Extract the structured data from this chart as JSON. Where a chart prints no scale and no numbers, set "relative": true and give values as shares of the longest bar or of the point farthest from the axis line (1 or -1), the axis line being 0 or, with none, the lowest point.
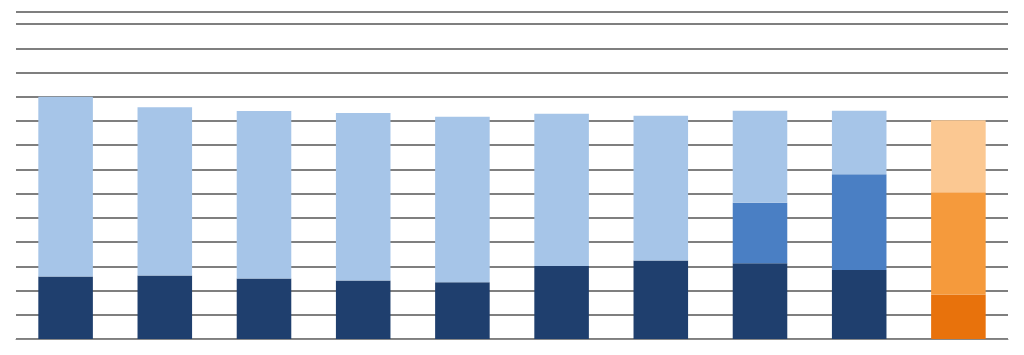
{
  "chart_data": {
    "type": "bar",
    "stacked": true,
    "relative": true,
    "grid": true,
    "categories": [
      null,
      null,
      null,
      null,
      null,
      null,
      null,
      null,
      null,
      null
    ],
    "series": [
      {
        "colors": [
          "#1f3f6e",
          "#1f3f6e",
          "#1f3f6e",
          "#1f3f6e",
          "#1f3f6e",
          "#1f3f6e",
          "#1f3f6e",
          "#1f3f6e",
          "#1f3f6e",
          "#e8720c"
        ],
        "values": [
          0.258,
          0.262,
          0.25,
          0.242,
          0.234,
          0.301,
          0.324,
          0.313,
          0.285,
          0.184
        ]
      },
      {
        "colors": [
          "#4a7fc4",
          "#4a7fc4",
          "#4a7fc4",
          "#4a7fc4",
          "#4a7fc4",
          "#4a7fc4",
          "#4a7fc4",
          "#4a7fc4",
          "#4a7fc4",
          "#f59a3c"
        ],
        "values": [
          null,
          null,
          null,
          null,
          null,
          null,
          null,
          0.25,
          0.395,
          0.422
        ]
      },
      {
        "colors": [
          "#a6c5e8",
          "#a6c5e8",
          "#a6c5e8",
          "#a6c5e8",
          "#a6c5e8",
          "#a6c5e8",
          "#a6c5e8",
          "#a6c5e8",
          "#a6c5e8",
          "#fbc892"
        ],
        "values": [
          0.742,
          0.695,
          0.691,
          0.691,
          0.684,
          0.629,
          0.598,
          0.379,
          0.262,
          0.297
        ]
      }
    ]
  }
}
